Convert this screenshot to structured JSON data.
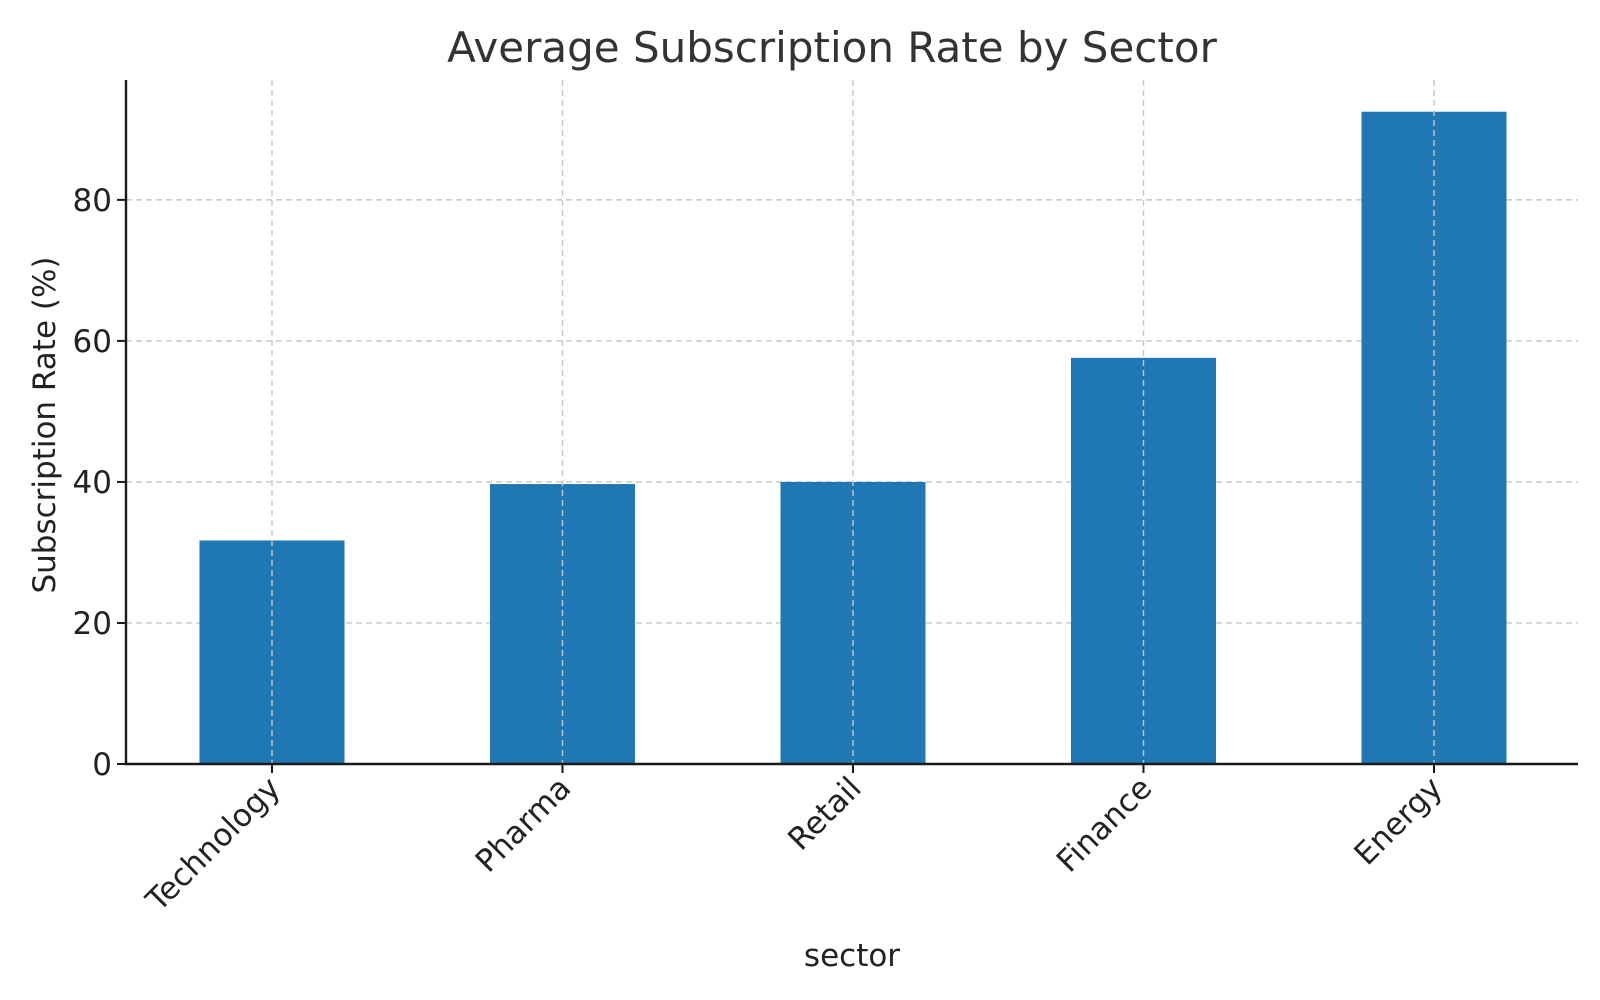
{
  "chart_data": {
    "type": "bar",
    "title": "Average Subscription Rate by Sector",
    "xlabel": "sector",
    "ylabel": "Subscription Rate (%)",
    "categories": [
      "Technology",
      "Pharma",
      "Retail",
      "Finance",
      "Energy"
    ],
    "values": [
      31.7,
      39.7,
      40.0,
      57.6,
      92.5
    ],
    "yticks": [
      0,
      20,
      40,
      60,
      80
    ],
    "ylim": [
      0,
      97
    ],
    "grid": true,
    "bar_color": "#1f77b4",
    "legend": "none"
  }
}
